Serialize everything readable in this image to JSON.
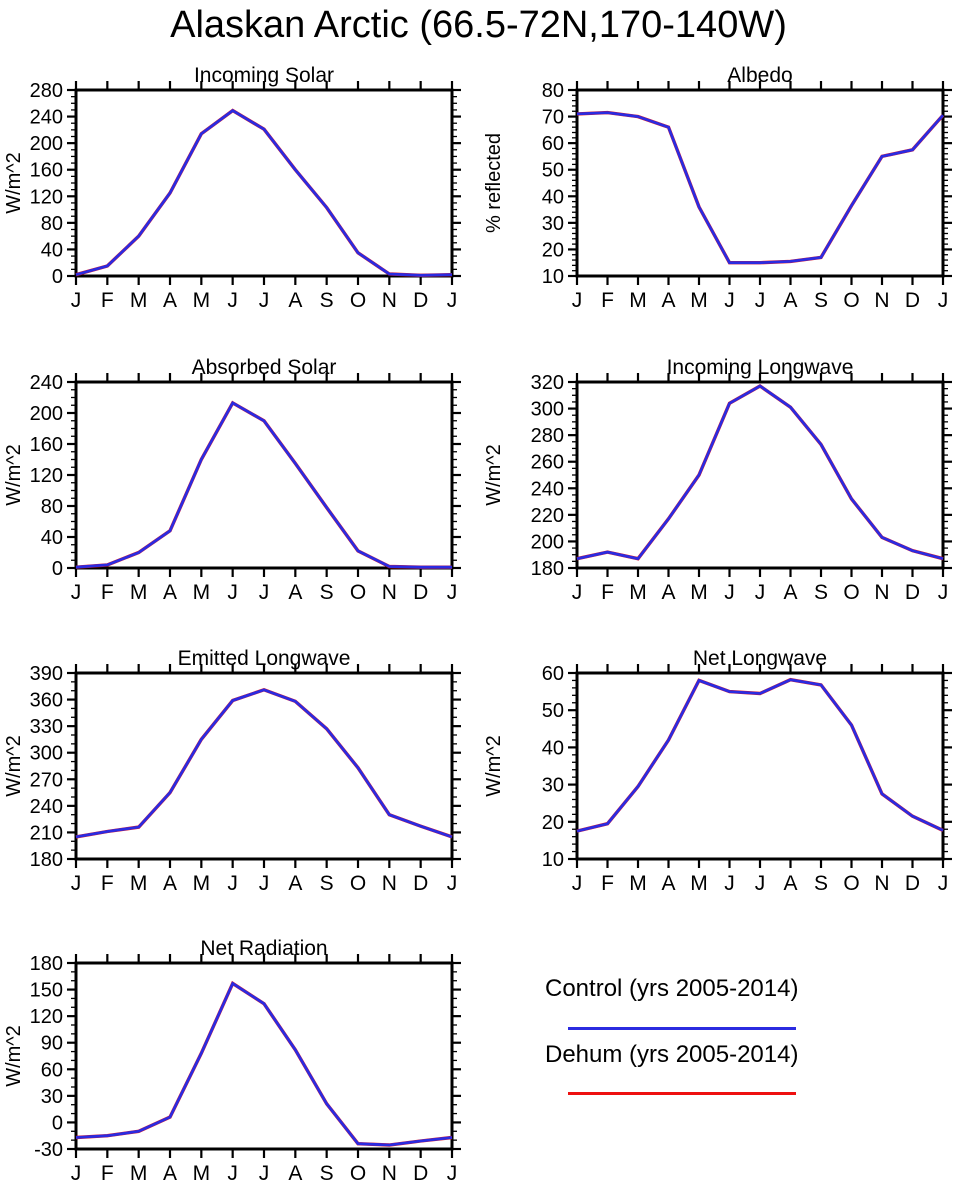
{
  "page": {
    "title": "Alaskan Arctic (66.5-72N,170-140W)"
  },
  "legend": {
    "position": "bottom-right-cell",
    "entries": [
      {
        "label": "Control (yrs 2005-2014)",
        "color": "#2b2be0"
      },
      {
        "label": "Dehum (yrs 2005-2014)",
        "color": "#ee1010"
      }
    ]
  },
  "chart_data": [
    {
      "type": "line",
      "title": "Incoming Solar",
      "xlabel": "",
      "ylabel": "W/m^2",
      "ylim": [
        0,
        280
      ],
      "ytick_step": 40,
      "yminors_per_interval": 3,
      "grid": false,
      "x_categories": [
        "J",
        "F",
        "M",
        "A",
        "M",
        "J",
        "J",
        "A",
        "S",
        "O",
        "N",
        "D",
        "J"
      ],
      "series": [
        {
          "name": "Control (yrs 2005-2014)",
          "color": "#2b2be0",
          "values": [
            2,
            15,
            60,
            125,
            214,
            249,
            221,
            160,
            103,
            35,
            3,
            1,
            2
          ]
        },
        {
          "name": "Dehum (yrs 2005-2014)",
          "color": "#ee1010",
          "values": [
            2,
            15,
            60,
            125,
            214,
            249,
            221,
            160,
            103,
            35,
            3,
            1,
            2
          ]
        }
      ]
    },
    {
      "type": "line",
      "title": "Albedo",
      "xlabel": "",
      "ylabel": "% reflected",
      "ylim": [
        10,
        80
      ],
      "ytick_step": 10,
      "yminors_per_interval": 4,
      "grid": false,
      "x_categories": [
        "J",
        "F",
        "M",
        "A",
        "M",
        "J",
        "J",
        "A",
        "S",
        "O",
        "N",
        "D",
        "J"
      ],
      "series": [
        {
          "name": "Control (yrs 2005-2014)",
          "color": "#2b2be0",
          "values": [
            71,
            71.5,
            70,
            66,
            36,
            15,
            15,
            15.5,
            17,
            36.5,
            55,
            57.5,
            70.5
          ]
        },
        {
          "name": "Dehum (yrs 2005-2014)",
          "color": "#ee1010",
          "values": [
            71,
            71.5,
            70,
            66,
            36,
            15,
            15,
            15.5,
            17,
            36.5,
            55,
            57.5,
            70.5
          ]
        }
      ]
    },
    {
      "type": "line",
      "title": "Absorbed Solar",
      "xlabel": "",
      "ylabel": "W/m^2",
      "ylim": [
        0,
        240
      ],
      "ytick_step": 40,
      "yminors_per_interval": 3,
      "grid": false,
      "x_categories": [
        "J",
        "F",
        "M",
        "A",
        "M",
        "J",
        "J",
        "A",
        "S",
        "O",
        "N",
        "D",
        "J"
      ],
      "series": [
        {
          "name": "Control (yrs 2005-2014)",
          "color": "#2b2be0",
          "values": [
            1,
            4,
            20,
            48,
            140,
            213,
            190,
            135,
            78,
            22,
            2,
            1,
            1
          ]
        },
        {
          "name": "Dehum (yrs 2005-2014)",
          "color": "#ee1010",
          "values": [
            1,
            4,
            20,
            48,
            140,
            213,
            190,
            135,
            78,
            22,
            2,
            1,
            1
          ]
        }
      ]
    },
    {
      "type": "line",
      "title": "Incoming Longwave",
      "xlabel": "",
      "ylabel": "W/m^2",
      "ylim": [
        180,
        320
      ],
      "ytick_step": 20,
      "yminors_per_interval": 3,
      "grid": false,
      "x_categories": [
        "J",
        "F",
        "M",
        "A",
        "M",
        "J",
        "J",
        "A",
        "S",
        "O",
        "N",
        "D",
        "J"
      ],
      "series": [
        {
          "name": "Control (yrs 2005-2014)",
          "color": "#2b2be0",
          "values": [
            187,
            192,
            187,
            217,
            250,
            304,
            317,
            301,
            273,
            232,
            203,
            193,
            187
          ]
        },
        {
          "name": "Dehum (yrs 2005-2014)",
          "color": "#ee1010",
          "values": [
            187,
            192,
            187,
            217,
            250,
            304,
            317,
            301,
            273,
            232,
            203,
            193,
            187
          ]
        }
      ]
    },
    {
      "type": "line",
      "title": "Emitted Longwave",
      "xlabel": "",
      "ylabel": "W/m^2",
      "ylim": [
        180,
        390
      ],
      "ytick_step": 30,
      "yminors_per_interval": 2,
      "grid": false,
      "x_categories": [
        "J",
        "F",
        "M",
        "A",
        "M",
        "J",
        "J",
        "A",
        "S",
        "O",
        "N",
        "D",
        "J"
      ],
      "series": [
        {
          "name": "Control (yrs 2005-2014)",
          "color": "#2b2be0",
          "values": [
            205,
            211,
            216,
            255,
            315,
            359,
            371,
            358,
            327,
            283,
            230,
            217,
            205
          ]
        },
        {
          "name": "Dehum (yrs 2005-2014)",
          "color": "#ee1010",
          "values": [
            205,
            211,
            216,
            255,
            315,
            359,
            371,
            358,
            327,
            283,
            230,
            217,
            205
          ]
        }
      ]
    },
    {
      "type": "line",
      "title": "Net Longwave",
      "xlabel": "",
      "ylabel": "W/m^2",
      "ylim": [
        10,
        60
      ],
      "ytick_step": 10,
      "yminors_per_interval": 4,
      "grid": false,
      "x_categories": [
        "J",
        "F",
        "M",
        "A",
        "M",
        "J",
        "J",
        "A",
        "S",
        "O",
        "N",
        "D",
        "J"
      ],
      "series": [
        {
          "name": "Control (yrs 2005-2014)",
          "color": "#2b2be0",
          "values": [
            17.5,
            19.5,
            29.5,
            42,
            58,
            55,
            54.5,
            58.2,
            56.8,
            46,
            27.5,
            21.5,
            17.7
          ]
        },
        {
          "name": "Dehum (yrs 2005-2014)",
          "color": "#ee1010",
          "values": [
            17.5,
            19.5,
            29.5,
            42,
            58,
            55,
            54.5,
            58.2,
            56.8,
            46,
            27.5,
            21.5,
            17.7
          ]
        }
      ]
    },
    {
      "type": "line",
      "title": "Net Radiation",
      "xlabel": "",
      "ylabel": "W/m^2",
      "ylim": [
        -30,
        180
      ],
      "ytick_step": 30,
      "yminors_per_interval": 2,
      "grid": false,
      "x_categories": [
        "J",
        "F",
        "M",
        "A",
        "M",
        "J",
        "J",
        "A",
        "S",
        "O",
        "N",
        "D",
        "J"
      ],
      "series": [
        {
          "name": "Control (yrs 2005-2014)",
          "color": "#2b2be0",
          "values": [
            -17,
            -15,
            -10,
            6,
            78,
            157,
            134,
            82,
            21,
            -24,
            -25.5,
            -21,
            -17
          ]
        },
        {
          "name": "Dehum (yrs 2005-2014)",
          "color": "#ee1010",
          "values": [
            -17,
            -15,
            -10,
            6,
            78,
            157,
            134,
            82,
            21,
            -24,
            -25.5,
            -21,
            -17
          ]
        }
      ]
    }
  ]
}
